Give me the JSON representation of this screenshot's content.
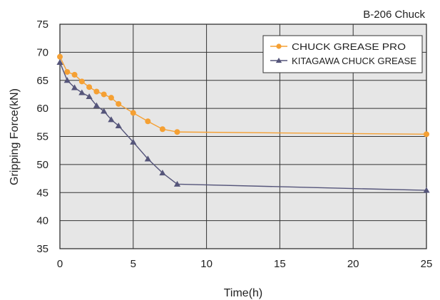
{
  "chart_data": {
    "type": "line",
    "title": "B-206 Chuck",
    "xlabel": "Time(h)",
    "ylabel": "Gripping Force(kN)",
    "xlim": [
      0,
      25
    ],
    "ylim": [
      35,
      75
    ],
    "x_ticks": [
      "0",
      "5",
      "10",
      "15",
      "20",
      "25"
    ],
    "y_ticks": [
      "35",
      "40",
      "45",
      "50",
      "55",
      "60",
      "65",
      "70",
      "75"
    ],
    "grid": true,
    "legend_position": "top-right",
    "plot_background": "#e6e6e6",
    "series": [
      {
        "name": "CHUCK GREASE PRO",
        "color": "#f5a033",
        "marker": "circle",
        "x": [
          0,
          0.5,
          1,
          1.5,
          2,
          2.5,
          3,
          3.5,
          4,
          5,
          6,
          7,
          8,
          25
        ],
        "y": [
          69.2,
          66.5,
          66.0,
          64.8,
          63.8,
          63.0,
          62.5,
          61.9,
          60.8,
          59.2,
          57.7,
          56.3,
          55.8,
          55.4
        ]
      },
      {
        "name": "KITAGAWA CHUCK GREASE",
        "color": "#55557a",
        "marker": "triangle",
        "x": [
          0,
          0.5,
          1,
          1.5,
          2,
          2.5,
          3,
          3.5,
          4,
          5,
          6,
          7,
          8,
          25
        ],
        "y": [
          68.2,
          65.0,
          63.7,
          62.8,
          62.1,
          60.5,
          59.5,
          58.0,
          56.9,
          54.0,
          51.0,
          48.5,
          46.5,
          45.4
        ]
      }
    ]
  }
}
